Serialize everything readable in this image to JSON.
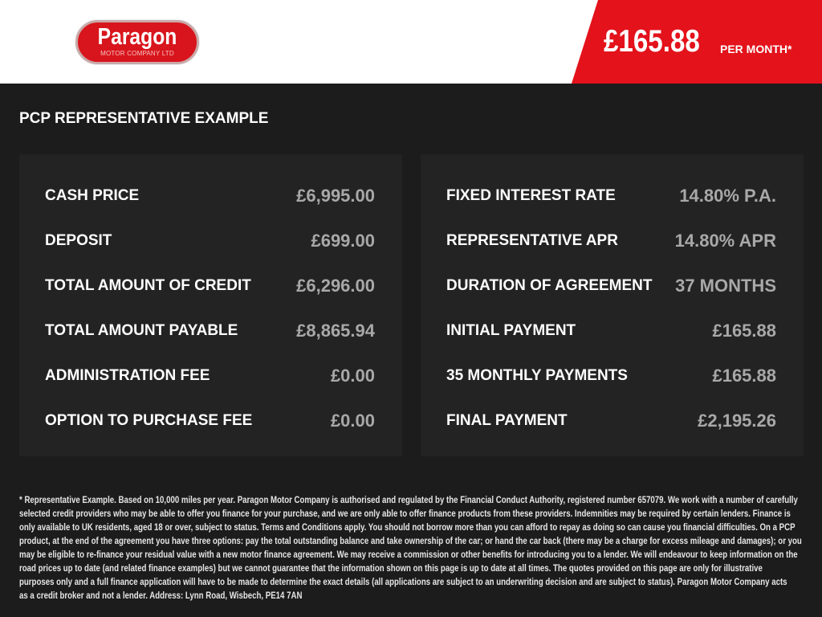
{
  "header": {
    "logo_text": "Paragon",
    "logo_sub": "MOTOR COMPANY LTD",
    "monthly_price": "£165.88",
    "per_month": "PER MONTH*"
  },
  "colors": {
    "accent": "#e3121b",
    "background": "#1c1c1c",
    "panel": "#232323"
  },
  "section_title": "PCP REPRESENTATIVE EXAMPLE",
  "left": [
    {
      "label": "CASH PRICE",
      "value": "£6,995.00"
    },
    {
      "label": "DEPOSIT",
      "value": "£699.00"
    },
    {
      "label": "TOTAL AMOUNT OF CREDIT",
      "value": "£6,296.00"
    },
    {
      "label": "TOTAL AMOUNT PAYABLE",
      "value": "£8,865.94"
    },
    {
      "label": "ADMINISTRATION FEE",
      "value": "£0.00"
    },
    {
      "label": "OPTION TO PURCHASE FEE",
      "value": "£0.00"
    }
  ],
  "right": [
    {
      "label": "FIXED INTEREST RATE",
      "value": "14.80% P.A."
    },
    {
      "label": "REPRESENTATIVE APR",
      "value": "14.80% APR"
    },
    {
      "label": "DURATION OF AGREEMENT",
      "value": "37 MONTHS"
    },
    {
      "label": "INITIAL PAYMENT",
      "value": "£165.88"
    },
    {
      "label": "35 MONTHLY PAYMENTS",
      "value": "£165.88"
    },
    {
      "label": "FINAL PAYMENT",
      "value": "£2,195.26"
    }
  ],
  "disclaimer": [
    "* Representative Example. Based on 10,000 miles per year. Paragon Motor Company is authorised and regulated by the Financial Conduct Authority, registered number 657079. We work with a number of carefully",
    "selected credit providers who may be able to offer you finance for your purchase, and we are only able to offer finance products from these providers. Indemnities may be required by certain lenders. Finance is",
    "only available to UK residents, aged 18 or over, subject to status. Terms and Conditions apply. You should not borrow more than you can afford to repay as doing so can cause you financial difficulties. On a PCP",
    "product, at the end of the agreement you have three options: pay the total outstanding balance and take ownership of the car; or hand the car back (there may be a charge for excess mileage and damages); or you",
    "may be eligible to re-finance your residual value with a new motor finance agreement. We may receive a commission or other benefits for introducing you to a lender. We will endeavour to keep information on the",
    "road prices up to date (and related finance examples) but we cannot guarantee that the information shown on this page is up to date at all times. The quotes provided on this page are only for illustrative",
    "purposes only and a full finance application will have to be made to determine the exact details (all applications are subject to an underwriting decision and are subject to status). Paragon Motor Company acts",
    "as a credit broker and not a lender. Address: Lynn Road, Wisbech, PE14 7AN"
  ]
}
